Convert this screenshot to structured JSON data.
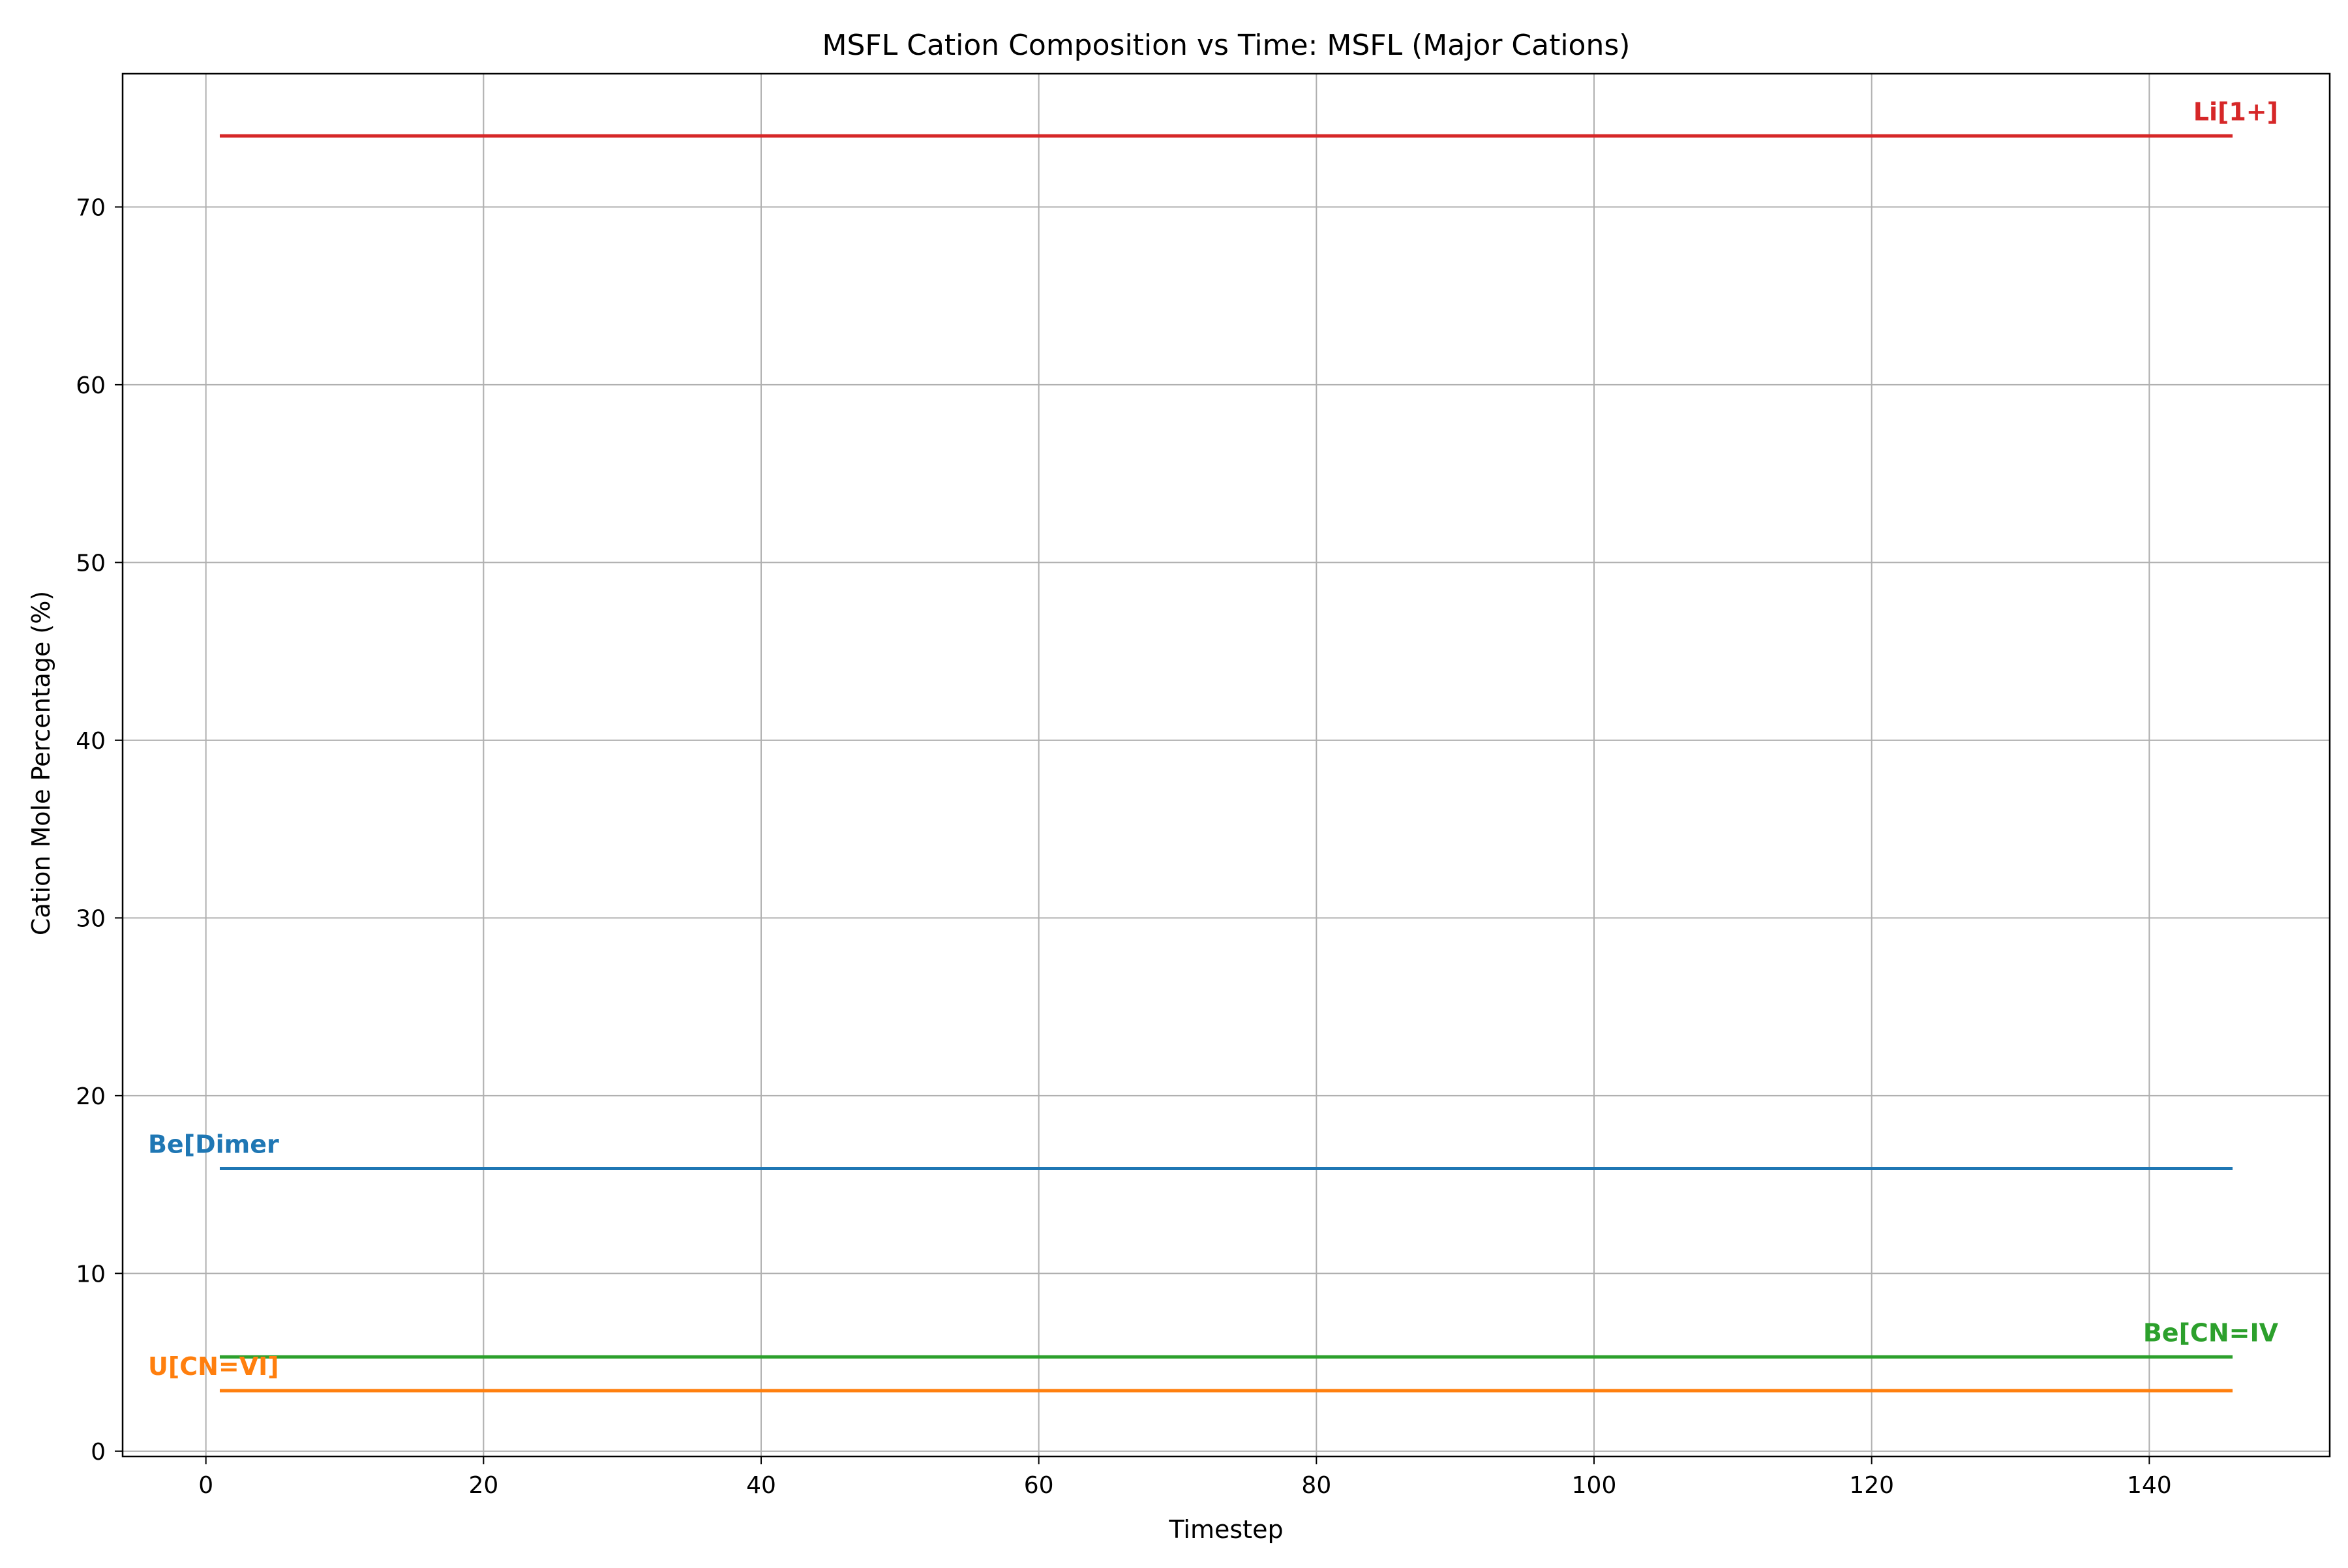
{
  "chart_data": {
    "type": "line",
    "title": "MSFL Cation Composition vs Time: MSFL (Major Cations)",
    "xlabel": "Timestep",
    "ylabel": "Cation Mole Percentage (%)",
    "xlim": [
      -6,
      153
    ],
    "ylim": [
      -0.3,
      77.5
    ],
    "xticks": [
      0,
      20,
      40,
      60,
      80,
      100,
      120,
      140
    ],
    "yticks": [
      0,
      10,
      20,
      30,
      40,
      50,
      60,
      70
    ],
    "grid": true,
    "series": [
      {
        "name": "Li[1+]",
        "color": "#d62728",
        "x": [
          1,
          146
        ],
        "y": [
          74.0,
          74.0
        ],
        "label_at": "end"
      },
      {
        "name": "Be[Dimer",
        "color": "#1f77b4",
        "x": [
          1,
          146
        ],
        "y": [
          15.9,
          15.9
        ],
        "label_at": "start"
      },
      {
        "name": "Be[CN=IV",
        "color": "#2ca02c",
        "x": [
          1,
          146
        ],
        "y": [
          5.3,
          5.3
        ],
        "label_at": "end"
      },
      {
        "name": "U[CN=VI]",
        "color": "#ff7f0e",
        "x": [
          1,
          146
        ],
        "y": [
          3.4,
          3.4
        ],
        "label_at": "start"
      }
    ]
  }
}
